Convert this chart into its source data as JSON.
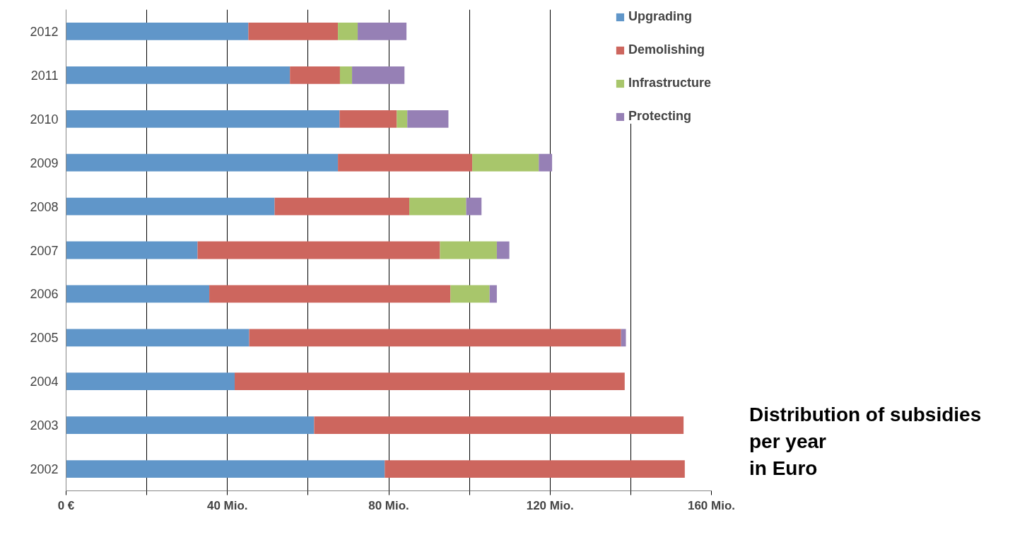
{
  "chart_data": {
    "type": "bar",
    "orientation": "horizontal",
    "stacked": true,
    "title": "Distribution of subsidies\nper year\nin Euro",
    "categories": [
      "2012",
      "2011",
      "2010",
      "2009",
      "2008",
      "2007",
      "2006",
      "2005",
      "2004",
      "2003",
      "2002"
    ],
    "series": [
      {
        "name": "Upgrading",
        "color": "#6096c9",
        "values": [
          45.2,
          55.5,
          67.8,
          67.4,
          51.7,
          32.6,
          35.5,
          45.4,
          41.8,
          61.5,
          79.0
        ]
      },
      {
        "name": "Demolishing",
        "color": "#cd665e",
        "values": [
          22.2,
          12.4,
          14.2,
          33.3,
          33.4,
          60.1,
          59.8,
          92.2,
          96.7,
          91.6,
          74.4
        ]
      },
      {
        "name": "Infrastructure",
        "color": "#a8c66b",
        "values": [
          4.9,
          3.0,
          2.6,
          16.5,
          14.1,
          14.1,
          9.7,
          null,
          null,
          null,
          null
        ]
      },
      {
        "name": "Protecting",
        "color": "#9680b5",
        "values": [
          12.1,
          13.0,
          10.2,
          3.3,
          3.8,
          3.1,
          1.8,
          1.2,
          null,
          null,
          null
        ]
      }
    ],
    "xlim": [
      0,
      160
    ],
    "xticks": [
      {
        "value": 0,
        "label": "0 €"
      },
      {
        "value": 20,
        "label": null
      },
      {
        "value": 40,
        "label": "40 Mio."
      },
      {
        "value": 60,
        "label": null
      },
      {
        "value": 80,
        "label": "80 Mio."
      },
      {
        "value": 100,
        "label": null
      },
      {
        "value": 120,
        "label": "120 Mio."
      },
      {
        "value": 140,
        "label": null
      },
      {
        "value": 160,
        "label": "160 Mio."
      }
    ],
    "grid": "x",
    "legend": "top right"
  }
}
